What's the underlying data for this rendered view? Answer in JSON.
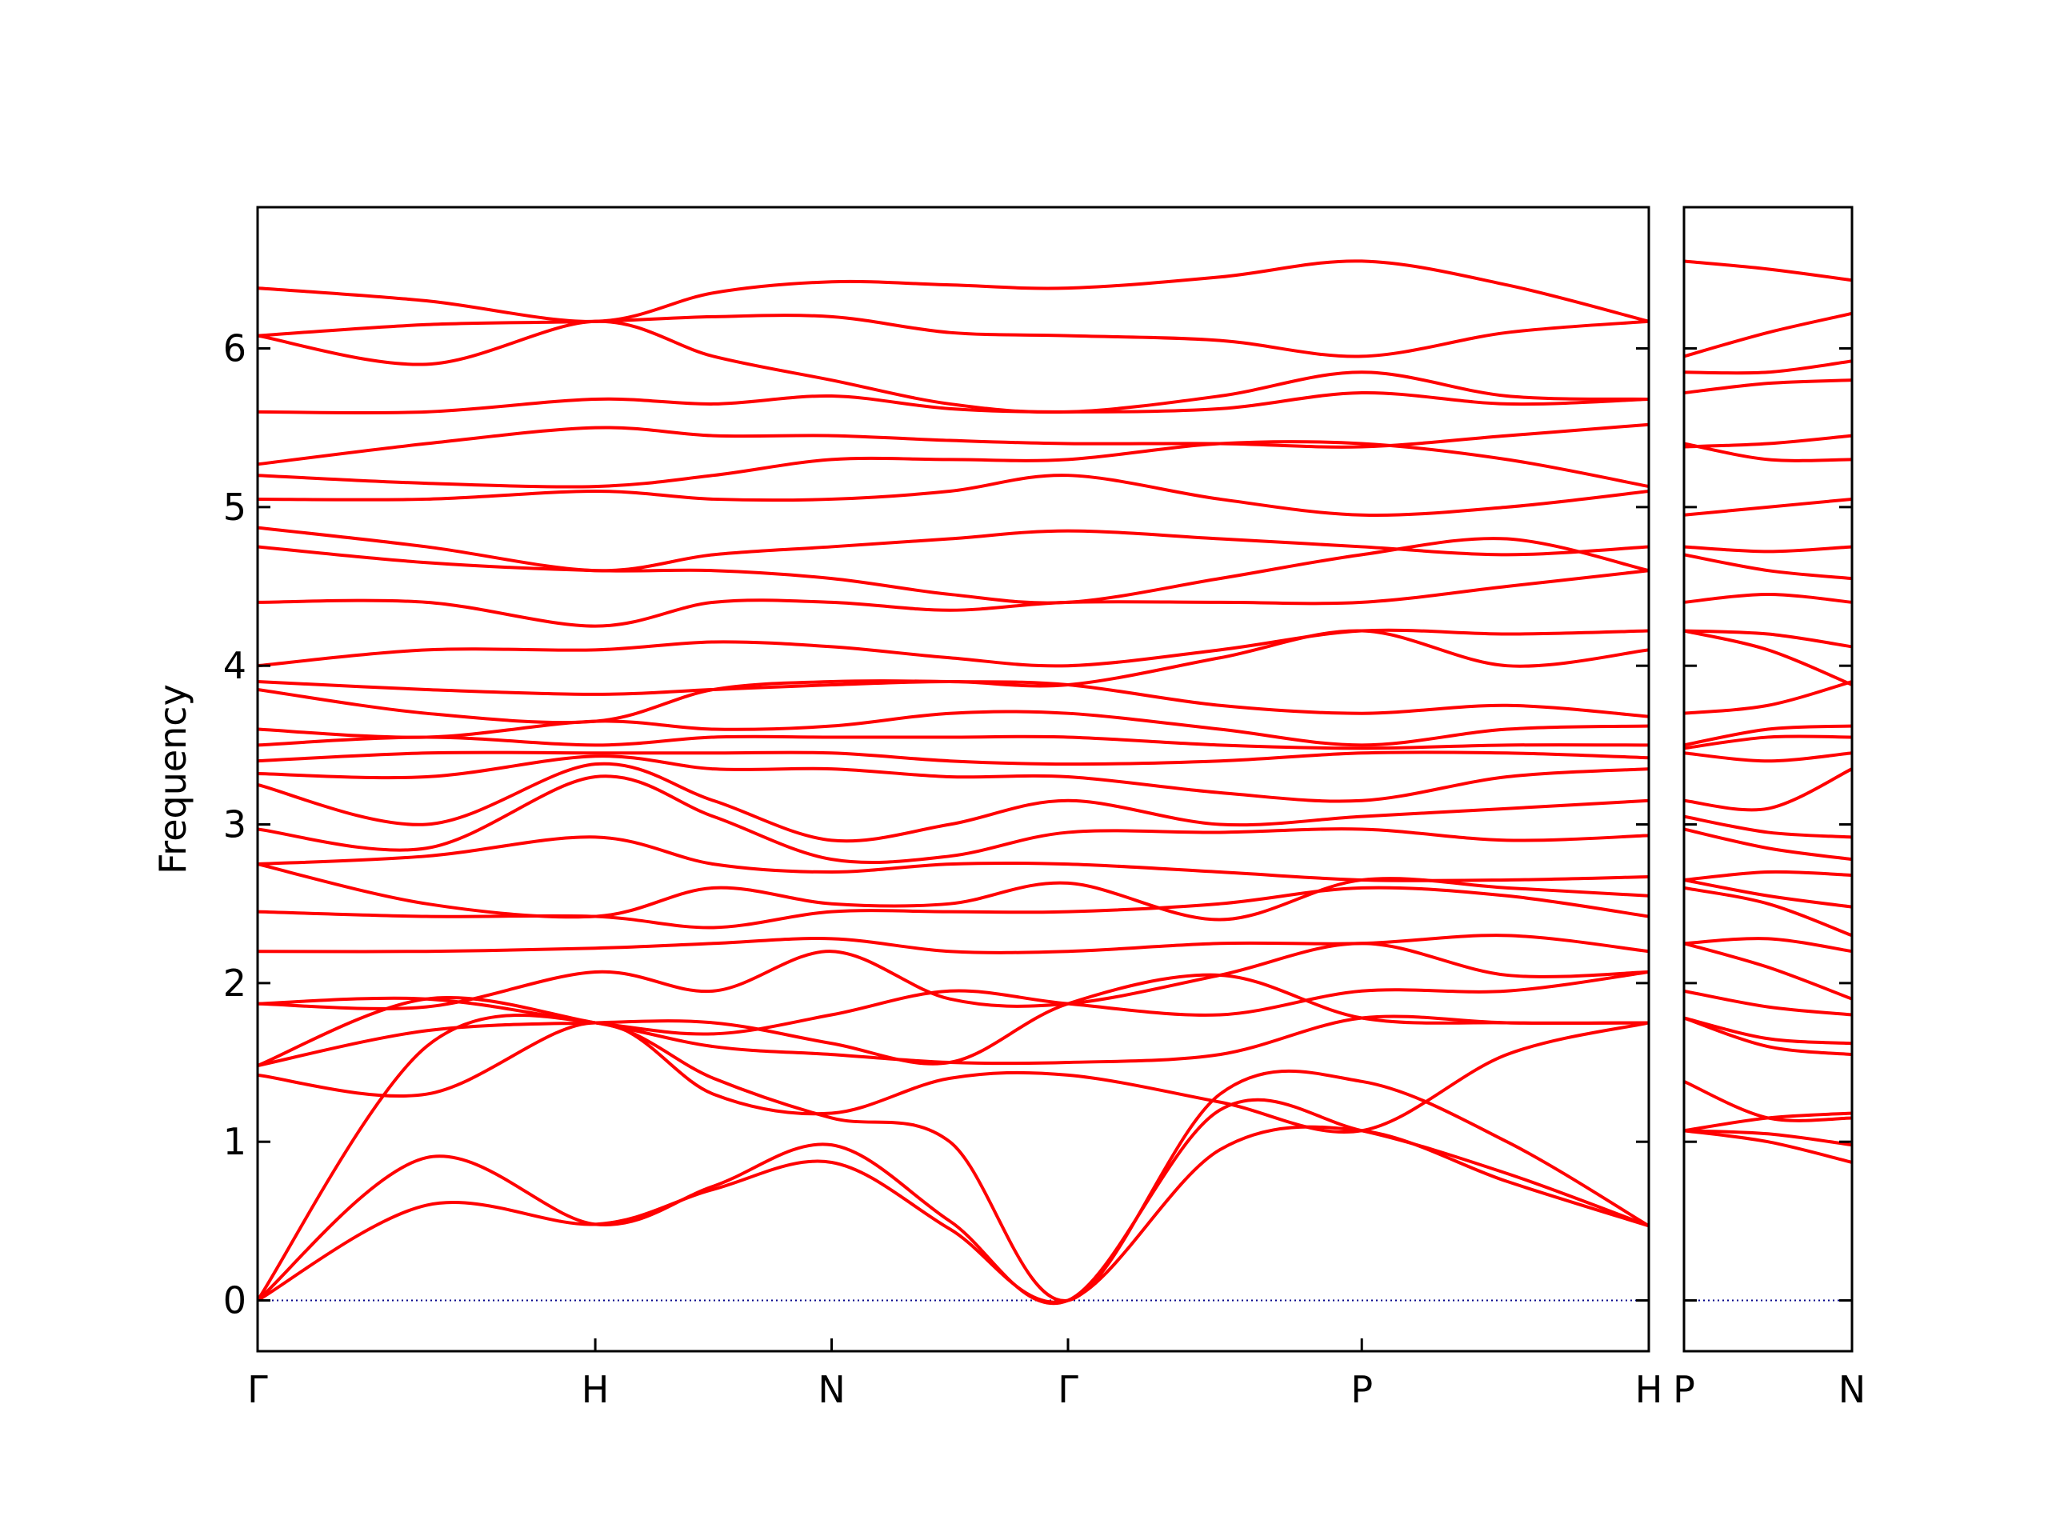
{
  "chart_data": [
    {
      "type": "line",
      "ylabel": "Frequency",
      "color": "#ff0000",
      "x": [
        0,
        0.5,
        1,
        1.35,
        1.7,
        2.05,
        2.4,
        2.85,
        3.27,
        3.7,
        4.12
      ],
      "xlim": [
        0,
        4.12
      ],
      "xticks": [
        {
          "value": 0,
          "label": "Γ"
        },
        {
          "value": 1,
          "label": "H"
        },
        {
          "value": 1.7,
          "label": "N"
        },
        {
          "value": 2.4,
          "label": "Γ"
        },
        {
          "value": 3.27,
          "label": "P"
        },
        {
          "value": 4.12,
          "label": "H"
        }
      ],
      "ylim": [
        -0.32,
        6.89
      ],
      "yticks": [
        0,
        1,
        2,
        3,
        4,
        5,
        6
      ],
      "ytick_labels": true,
      "hline": {
        "value": 0,
        "color": "#00008b"
      },
      "series": [
        {
          "values": [
            0,
            0.6,
            0.48,
            0.7,
            0.87,
            0.45,
            0,
            0.95,
            1.07,
            0.75,
            0.47
          ]
        },
        {
          "values": [
            0,
            0.9,
            0.48,
            0.72,
            0.98,
            0.5,
            0,
            1.2,
            1.07,
            0.8,
            0.47
          ]
        },
        {
          "values": [
            0,
            1.6,
            1.75,
            1.4,
            1.15,
            1.0,
            0,
            1.3,
            1.38,
            1.0,
            0.47
          ]
        },
        {
          "values": [
            1.42,
            1.3,
            1.75,
            1.3,
            1.18,
            1.4,
            1.42,
            1.25,
            1.07,
            1.55,
            1.75
          ]
        },
        {
          "values": [
            1.48,
            1.9,
            1.75,
            1.6,
            1.55,
            1.5,
            1.5,
            1.55,
            1.78,
            1.75,
            1.75
          ]
        },
        {
          "values": [
            1.48,
            1.7,
            1.75,
            1.75,
            1.62,
            1.5,
            1.87,
            2.05,
            1.78,
            1.75,
            1.75
          ]
        },
        {
          "values": [
            1.87,
            1.9,
            1.75,
            1.68,
            1.8,
            1.95,
            1.87,
            1.8,
            1.95,
            1.95,
            2.07
          ]
        },
        {
          "values": [
            1.87,
            1.85,
            2.07,
            1.95,
            2.2,
            1.9,
            1.87,
            2.05,
            2.25,
            2.05,
            2.07
          ]
        },
        {
          "values": [
            2.2,
            2.2,
            2.22,
            2.25,
            2.28,
            2.2,
            2.2,
            2.25,
            2.25,
            2.3,
            2.2
          ]
        },
        {
          "values": [
            2.45,
            2.42,
            2.42,
            2.35,
            2.45,
            2.45,
            2.45,
            2.5,
            2.6,
            2.55,
            2.42
          ]
        },
        {
          "values": [
            2.75,
            2.5,
            2.42,
            2.6,
            2.5,
            2.5,
            2.63,
            2.4,
            2.65,
            2.6,
            2.55
          ]
        },
        {
          "values": [
            2.75,
            2.8,
            2.92,
            2.75,
            2.7,
            2.75,
            2.75,
            2.7,
            2.65,
            2.65,
            2.67
          ]
        },
        {
          "values": [
            2.97,
            2.85,
            3.3,
            3.05,
            2.78,
            2.8,
            2.95,
            2.95,
            2.97,
            2.9,
            2.93
          ]
        },
        {
          "values": [
            3.25,
            3.0,
            3.38,
            3.15,
            2.9,
            3.0,
            3.15,
            3.0,
            3.05,
            3.1,
            3.15
          ]
        },
        {
          "values": [
            3.32,
            3.3,
            3.43,
            3.35,
            3.35,
            3.3,
            3.3,
            3.2,
            3.15,
            3.3,
            3.35
          ]
        },
        {
          "values": [
            3.4,
            3.45,
            3.45,
            3.45,
            3.45,
            3.4,
            3.38,
            3.4,
            3.45,
            3.45,
            3.42
          ]
        },
        {
          "values": [
            3.5,
            3.55,
            3.5,
            3.55,
            3.55,
            3.55,
            3.55,
            3.5,
            3.48,
            3.5,
            3.5
          ]
        },
        {
          "values": [
            3.6,
            3.55,
            3.65,
            3.6,
            3.62,
            3.7,
            3.7,
            3.6,
            3.5,
            3.6,
            3.62
          ]
        },
        {
          "values": [
            3.85,
            3.7,
            3.65,
            3.85,
            3.9,
            3.9,
            3.88,
            3.75,
            3.7,
            3.75,
            3.68
          ]
        },
        {
          "values": [
            3.9,
            3.85,
            3.82,
            3.85,
            3.88,
            3.9,
            3.88,
            4.05,
            4.22,
            4.0,
            4.1
          ]
        },
        {
          "values": [
            4.0,
            4.1,
            4.1,
            4.15,
            4.12,
            4.05,
            4.0,
            4.1,
            4.22,
            4.2,
            4.22
          ]
        },
        {
          "values": [
            4.4,
            4.4,
            4.25,
            4.4,
            4.4,
            4.35,
            4.4,
            4.4,
            4.4,
            4.5,
            4.6
          ]
        },
        {
          "values": [
            4.75,
            4.65,
            4.6,
            4.6,
            4.55,
            4.45,
            4.4,
            4.55,
            4.7,
            4.8,
            4.6
          ]
        },
        {
          "values": [
            4.87,
            4.75,
            4.6,
            4.7,
            4.75,
            4.8,
            4.85,
            4.8,
            4.75,
            4.7,
            4.75
          ]
        },
        {
          "values": [
            5.05,
            5.05,
            5.1,
            5.05,
            5.05,
            5.1,
            5.2,
            5.05,
            4.95,
            5.0,
            5.1
          ]
        },
        {
          "values": [
            5.2,
            5.15,
            5.13,
            5.2,
            5.3,
            5.3,
            5.3,
            5.4,
            5.4,
            5.3,
            5.13
          ]
        },
        {
          "values": [
            5.27,
            5.4,
            5.5,
            5.45,
            5.45,
            5.42,
            5.4,
            5.4,
            5.38,
            5.45,
            5.52
          ]
        },
        {
          "values": [
            5.6,
            5.6,
            5.68,
            5.65,
            5.7,
            5.62,
            5.6,
            5.62,
            5.72,
            5.65,
            5.68
          ]
        },
        {
          "values": [
            6.08,
            5.9,
            6.17,
            5.95,
            5.8,
            5.65,
            5.6,
            5.7,
            5.85,
            5.7,
            5.68
          ]
        },
        {
          "values": [
            6.08,
            6.15,
            6.17,
            6.2,
            6.2,
            6.1,
            6.08,
            6.05,
            5.95,
            6.1,
            6.17
          ]
        },
        {
          "values": [
            6.38,
            6.3,
            6.17,
            6.35,
            6.42,
            6.4,
            6.38,
            6.45,
            6.55,
            6.4,
            6.17
          ]
        }
      ]
    },
    {
      "type": "line",
      "color": "#ff0000",
      "x": [
        0,
        0.25,
        0.5
      ],
      "xlim": [
        0,
        0.5
      ],
      "xticks": [
        {
          "value": 0,
          "label": "P"
        },
        {
          "value": 0.5,
          "label": "N"
        }
      ],
      "ylim": [
        -0.32,
        6.89
      ],
      "yticks": [
        0,
        1,
        2,
        3,
        4,
        5,
        6
      ],
      "ytick_labels": false,
      "hline": {
        "value": 0,
        "color": "#00008b"
      },
      "series": [
        {
          "values": [
            1.07,
            1.0,
            0.87
          ]
        },
        {
          "values": [
            1.07,
            1.05,
            0.98
          ]
        },
        {
          "values": [
            1.38,
            1.15,
            1.15
          ]
        },
        {
          "values": [
            1.07,
            1.15,
            1.18
          ]
        },
        {
          "values": [
            1.78,
            1.6,
            1.55
          ]
        },
        {
          "values": [
            1.78,
            1.65,
            1.62
          ]
        },
        {
          "values": [
            1.95,
            1.85,
            1.8
          ]
        },
        {
          "values": [
            2.25,
            2.1,
            1.9
          ]
        },
        {
          "values": [
            2.25,
            2.28,
            2.2
          ]
        },
        {
          "values": [
            2.6,
            2.5,
            2.3
          ]
        },
        {
          "values": [
            2.65,
            2.55,
            2.48
          ]
        },
        {
          "values": [
            2.65,
            2.7,
            2.68
          ]
        },
        {
          "values": [
            2.97,
            2.85,
            2.78
          ]
        },
        {
          "values": [
            3.05,
            2.95,
            2.92
          ]
        },
        {
          "values": [
            3.15,
            3.1,
            3.35
          ]
        },
        {
          "values": [
            3.45,
            3.4,
            3.45
          ]
        },
        {
          "values": [
            3.48,
            3.55,
            3.55
          ]
        },
        {
          "values": [
            3.5,
            3.6,
            3.62
          ]
        },
        {
          "values": [
            3.7,
            3.75,
            3.9
          ]
        },
        {
          "values": [
            4.22,
            4.1,
            3.88
          ]
        },
        {
          "values": [
            4.22,
            4.2,
            4.12
          ]
        },
        {
          "values": [
            4.4,
            4.45,
            4.4
          ]
        },
        {
          "values": [
            4.7,
            4.6,
            4.55
          ]
        },
        {
          "values": [
            4.75,
            4.72,
            4.75
          ]
        },
        {
          "values": [
            4.95,
            5.0,
            5.05
          ]
        },
        {
          "values": [
            5.4,
            5.3,
            5.3
          ]
        },
        {
          "values": [
            5.38,
            5.4,
            5.45
          ]
        },
        {
          "values": [
            5.72,
            5.78,
            5.8
          ]
        },
        {
          "values": [
            5.85,
            5.85,
            5.92
          ]
        },
        {
          "values": [
            5.95,
            6.1,
            6.22
          ]
        },
        {
          "values": [
            6.55,
            6.5,
            6.43
          ]
        }
      ]
    }
  ]
}
